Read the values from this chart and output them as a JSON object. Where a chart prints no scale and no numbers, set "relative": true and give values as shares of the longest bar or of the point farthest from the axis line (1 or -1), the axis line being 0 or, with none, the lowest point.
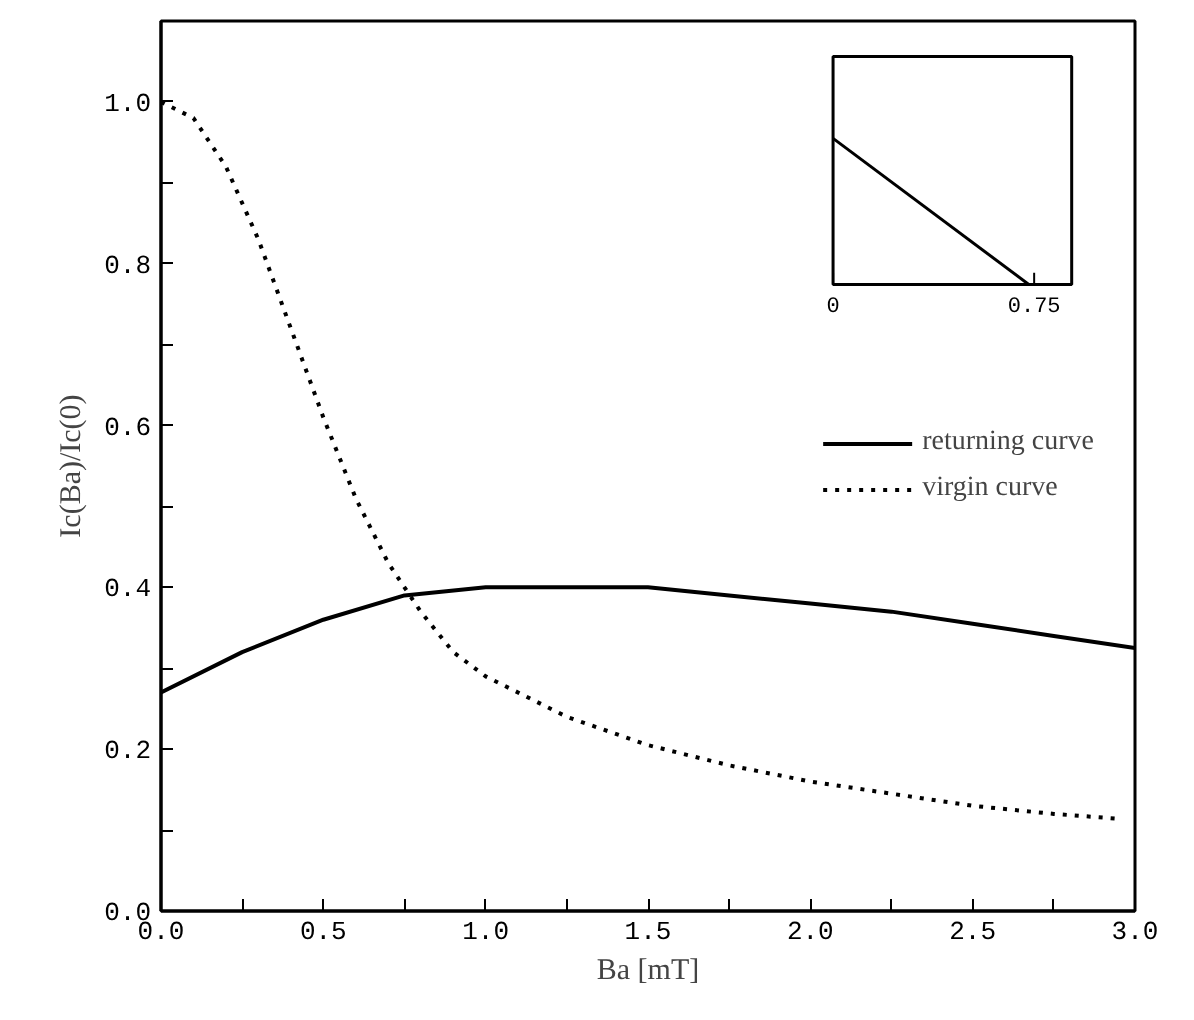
{
  "chart_data": [
    {
      "type": "line",
      "xlabel": "Ba [mT]",
      "ylabel": "Ic(Ba)/Ic(0)",
      "xlim": [
        0,
        3.0
      ],
      "ylim": [
        0,
        1.1
      ],
      "xticks": [
        {
          "value": 0,
          "label": "0.0"
        },
        {
          "value": 0.25,
          "label": null
        },
        {
          "value": 0.5,
          "label": "0.5"
        },
        {
          "value": 0.75,
          "label": null
        },
        {
          "value": 1,
          "label": "1.0"
        },
        {
          "value": 1.25,
          "label": null
        },
        {
          "value": 1.5,
          "label": "1.5"
        },
        {
          "value": 1.75,
          "label": null
        },
        {
          "value": 2,
          "label": "2.0"
        },
        {
          "value": 2.25,
          "label": null
        },
        {
          "value": 2.5,
          "label": "2.5"
        },
        {
          "value": 2.75,
          "label": null
        },
        {
          "value": 3,
          "label": "3.0"
        }
      ],
      "yticks": [
        {
          "value": 0,
          "label": "0.0"
        },
        {
          "value": 0.1,
          "label": null
        },
        {
          "value": 0.2,
          "label": "0.2"
        },
        {
          "value": 0.3,
          "label": null
        },
        {
          "value": 0.4,
          "label": "0.4"
        },
        {
          "value": 0.5,
          "label": null
        },
        {
          "value": 0.6,
          "label": "0.6"
        },
        {
          "value": 0.7,
          "label": null
        },
        {
          "value": 0.8,
          "label": "0.8"
        },
        {
          "value": 0.9,
          "label": null
        },
        {
          "value": 1,
          "label": "1.0"
        }
      ],
      "grid": false,
      "legend": "right",
      "series": [
        {
          "name": "returning curve",
          "color": "#000000",
          "line_style": "solid",
          "x": [
            0,
            0.25,
            0.5,
            0.75,
            1.0,
            1.25,
            1.5,
            1.75,
            2.0,
            2.25,
            2.5,
            2.75,
            3.0
          ],
          "values": [
            0.27,
            0.32,
            0.36,
            0.39,
            0.4,
            0.4,
            0.4,
            0.39,
            0.38,
            0.37,
            0.355,
            0.34,
            0.325
          ]
        },
        {
          "name": "virgin curve",
          "color": "#000000",
          "line_style": "dotted",
          "x": [
            0,
            0.1,
            0.2,
            0.3,
            0.4,
            0.5,
            0.6,
            0.7,
            0.8,
            0.9,
            1.0,
            1.25,
            1.5,
            1.75,
            2.0,
            2.25,
            2.5,
            2.75,
            2.95
          ],
          "values": [
            1.0,
            0.98,
            0.92,
            0.83,
            0.72,
            0.61,
            0.51,
            0.43,
            0.37,
            0.32,
            0.29,
            0.24,
            0.205,
            0.18,
            0.16,
            0.145,
            0.13,
            0.12,
            0.114
          ]
        }
      ]
    },
    {
      "type": "line",
      "relative": true,
      "x": [
        0,
        0.73
      ],
      "values": [
        1,
        0
      ],
      "color": "#000000",
      "xlim": [
        0,
        0.89
      ],
      "xticks": [
        {
          "value": 0,
          "label": "0"
        },
        {
          "value": 0.75,
          "label": "0.75"
        }
      ],
      "tick_labels": "x"
    }
  ]
}
